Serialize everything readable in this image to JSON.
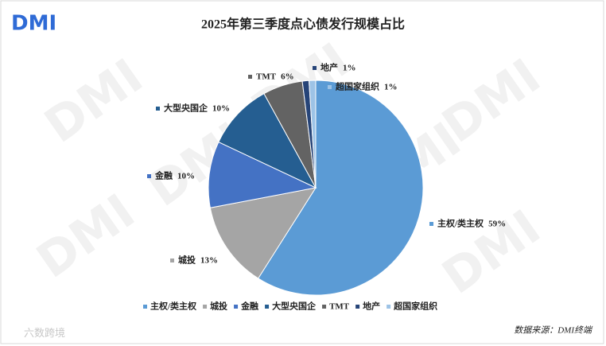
{
  "logo": "DMI",
  "watermark": "DMI",
  "brand_watermark": "六数跨境",
  "source": "数据来源：DMI终端",
  "chart_data": {
    "type": "pie",
    "title": "2025年第三季度点心债发行规模占比",
    "categories": [
      "主权/类主权",
      "城投",
      "金融",
      "大型央国企",
      "TMT",
      "地产",
      "超国家组织"
    ],
    "values": [
      59,
      13,
      10,
      10,
      6,
      1,
      1
    ],
    "value_labels": [
      "59%",
      "13%",
      "10%",
      "10%",
      "6%",
      "1%",
      "1%"
    ],
    "colors": [
      "#5b9bd5",
      "#a5a5a5",
      "#4472c4",
      "#255e91",
      "#636363",
      "#264478",
      "#9dc3e6"
    ],
    "legend": "bottom"
  }
}
